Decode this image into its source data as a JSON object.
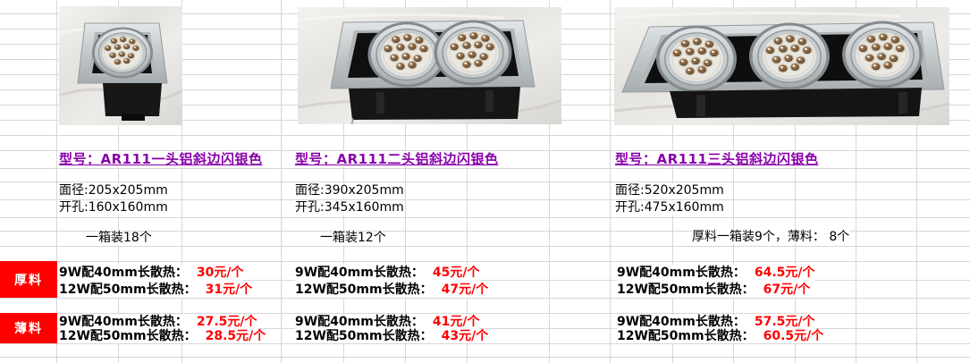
{
  "colors": {
    "model_text": "#8800AA",
    "price_text": "#FF0000",
    "material_label_bg": "#FF0000",
    "material_label_text": "#FFFFFF",
    "grid_line": "#D7D7D7"
  },
  "row_labels": {
    "thick": "厚料",
    "thin": "薄料"
  },
  "products": [
    {
      "photo_icon": "ar111-1-head-downlight-photo",
      "model": "型号：AR111一头铝斜边闪银色",
      "face_size": "面径:205x205mm",
      "cutout_size": "开孔:160x160mm",
      "packing": "一箱装18个",
      "prices": {
        "thick": [
          {
            "label": "9W配40mm长散热：",
            "price": "30元/个"
          },
          {
            "label": "12W配50mm长散热：",
            "price": "31元/个"
          }
        ],
        "thin": [
          {
            "label": "9W配40mm长散热：",
            "price": "27.5元/个"
          },
          {
            "label": "12W配50mm长散热：",
            "price": "28.5元/个"
          }
        ]
      }
    },
    {
      "photo_icon": "ar111-2-head-downlight-photo",
      "model": "型号：AR111二头铝斜边闪银色",
      "face_size": "面径:390x205mm",
      "cutout_size": "开孔:345x160mm",
      "packing": "一箱装12个",
      "prices": {
        "thick": [
          {
            "label": "9W配40mm长散热：",
            "price": "45元/个"
          },
          {
            "label": "12W配50mm长散热：",
            "price": "47元/个"
          }
        ],
        "thin": [
          {
            "label": "9W配40mm长散热：",
            "price": "41元/个"
          },
          {
            "label": "12W配50mm长散热：",
            "price": "43元/个"
          }
        ]
      }
    },
    {
      "photo_icon": "ar111-3-head-downlight-photo",
      "model": "型号：AR111三头铝斜边闪银色",
      "face_size": "面径:520x205mm",
      "cutout_size": "开孔:475x160mm",
      "packing": "厚料一箱装9个，薄料： 8个",
      "prices": {
        "thick": [
          {
            "label": "9W配40mm长散热：",
            "price": "64.5元/个"
          },
          {
            "label": "12W配50mm长散热：",
            "price": "67元/个"
          }
        ],
        "thin": [
          {
            "label": "9W配40mm长散热：",
            "price": "57.5元/个"
          },
          {
            "label": "12W配50mm长散热：",
            "price": "60.5元/个"
          }
        ]
      }
    }
  ]
}
